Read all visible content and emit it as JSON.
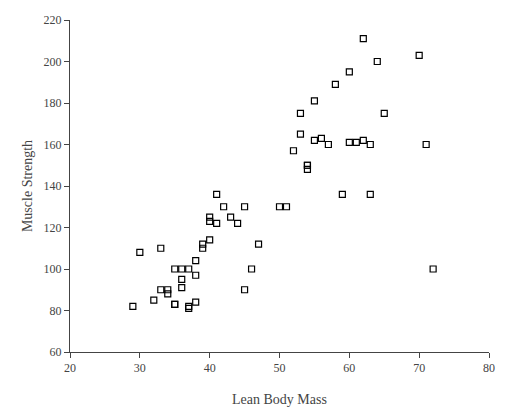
{
  "chart_data": {
    "type": "scatter",
    "x": [
      29,
      30,
      32,
      33,
      33,
      34,
      34,
      35,
      35,
      35,
      36,
      36,
      36,
      37,
      37,
      37,
      38,
      38,
      38,
      39,
      39,
      40,
      40,
      40,
      41,
      41,
      42,
      43,
      44,
      45,
      45,
      46,
      47,
      50,
      51,
      52,
      53,
      53,
      54,
      54,
      54,
      55,
      55,
      56,
      57,
      58,
      59,
      60,
      60,
      61,
      62,
      62,
      63,
      63,
      64,
      65,
      70,
      71,
      72
    ],
    "values": [
      82,
      108,
      85,
      110,
      90,
      88,
      90,
      100,
      83,
      83,
      100,
      95,
      91,
      82,
      81,
      100,
      97,
      104,
      84,
      112,
      110,
      114,
      125,
      123,
      136,
      122,
      130,
      125,
      122,
      130,
      90,
      100,
      112,
      130,
      130,
      157,
      165,
      175,
      148,
      150,
      150,
      181,
      162,
      163,
      160,
      189,
      136,
      195,
      161,
      161,
      211,
      162,
      160,
      136,
      200,
      175,
      203,
      160,
      100
    ],
    "xlim": [
      20,
      80
    ],
    "ylim": [
      60,
      220
    ],
    "xticks": [
      20,
      30,
      40,
      50,
      60,
      70,
      80
    ],
    "yticks": [
      60,
      80,
      100,
      120,
      140,
      160,
      180,
      200,
      220
    ],
    "xlabel": "Lean Body Mass",
    "ylabel": "Muscle Strength",
    "marker": "square-open",
    "color": "black",
    "grid": false
  }
}
